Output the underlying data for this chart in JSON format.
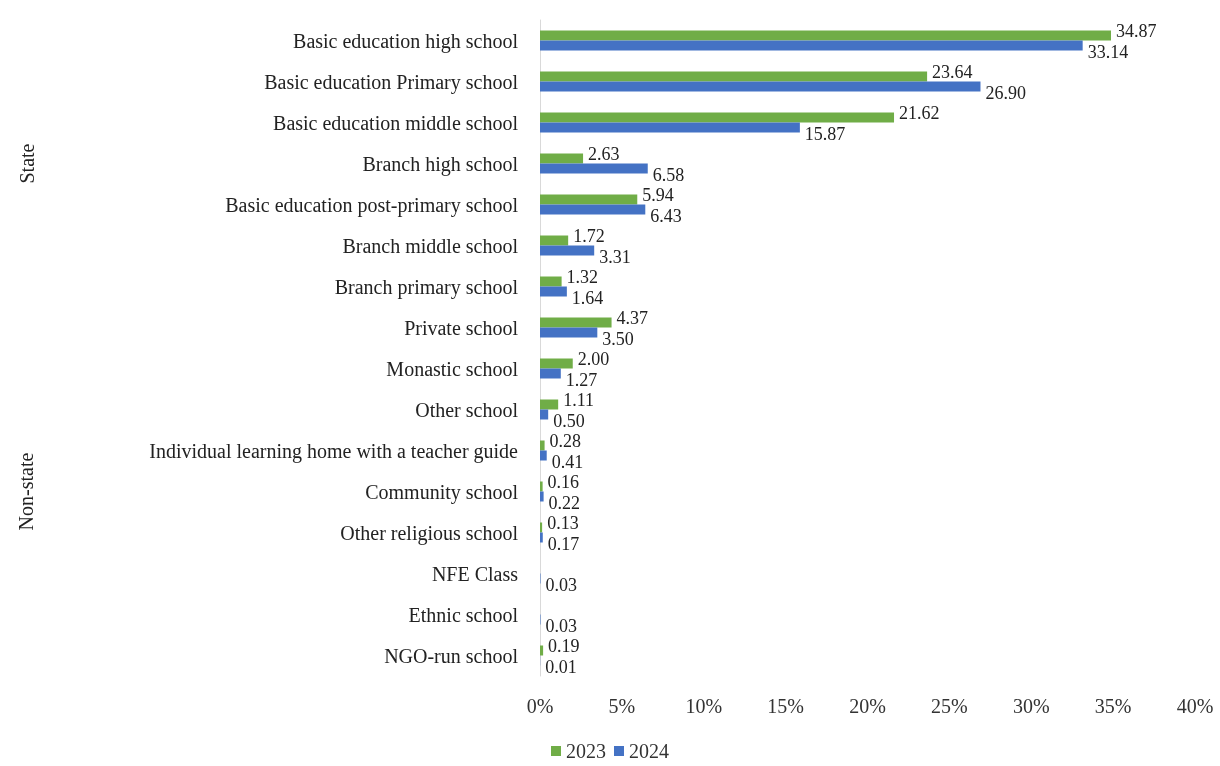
{
  "chart_data": {
    "type": "bar",
    "orientation": "horizontal",
    "categories": [
      "Basic education high school",
      "Basic education Primary school",
      "Basic education middle school",
      "Branch high school",
      "Basic education post-primary school",
      "Branch middle school",
      "Branch primary school",
      "Private school",
      "Monastic school",
      "Other school",
      "Individual learning home with a teacher guide",
      "Community school",
      "Other religious school",
      "NFE Class",
      "Ethnic school",
      "NGO-run school"
    ],
    "series": [
      {
        "name": "2023",
        "color": "#70ad47",
        "values": [
          34.87,
          23.64,
          21.62,
          2.63,
          5.94,
          1.72,
          1.32,
          4.37,
          2.0,
          1.11,
          0.28,
          0.16,
          0.13,
          null,
          null,
          0.19
        ],
        "value_labels": [
          "34.87",
          "23.64",
          "21.62",
          "2.63",
          "5.94",
          "1.72",
          "1.32",
          "4.37",
          "2.00",
          "1.11",
          "0.28",
          "0.16",
          "0.13",
          null,
          null,
          "0.19"
        ]
      },
      {
        "name": "2024",
        "color": "#4472c4",
        "values": [
          33.14,
          26.9,
          15.87,
          6.58,
          6.43,
          3.31,
          1.64,
          3.5,
          1.27,
          0.5,
          0.41,
          0.22,
          0.17,
          0.03,
          0.03,
          0.01
        ],
        "value_labels": [
          "33.14",
          "26.90",
          "15.87",
          "6.58",
          "6.43",
          "3.31",
          "1.64",
          "3.50",
          "1.27",
          "0.50",
          "0.41",
          "0.22",
          "0.17",
          "0.03",
          "0.03",
          "0.01"
        ]
      }
    ],
    "xlim": [
      0,
      40
    ],
    "xticks": [
      {
        "value": 0,
        "label": "0%"
      },
      {
        "value": 5,
        "label": "5%"
      },
      {
        "value": 10,
        "label": "10%"
      },
      {
        "value": 15,
        "label": "15%"
      },
      {
        "value": 20,
        "label": "20%"
      },
      {
        "value": 25,
        "label": "25%"
      },
      {
        "value": 30,
        "label": "30%"
      },
      {
        "value": 35,
        "label": "35%"
      },
      {
        "value": 40,
        "label": "40%"
      }
    ],
    "annotations": [
      "State",
      "Non-state"
    ],
    "grid": false,
    "legend": "bottom"
  }
}
